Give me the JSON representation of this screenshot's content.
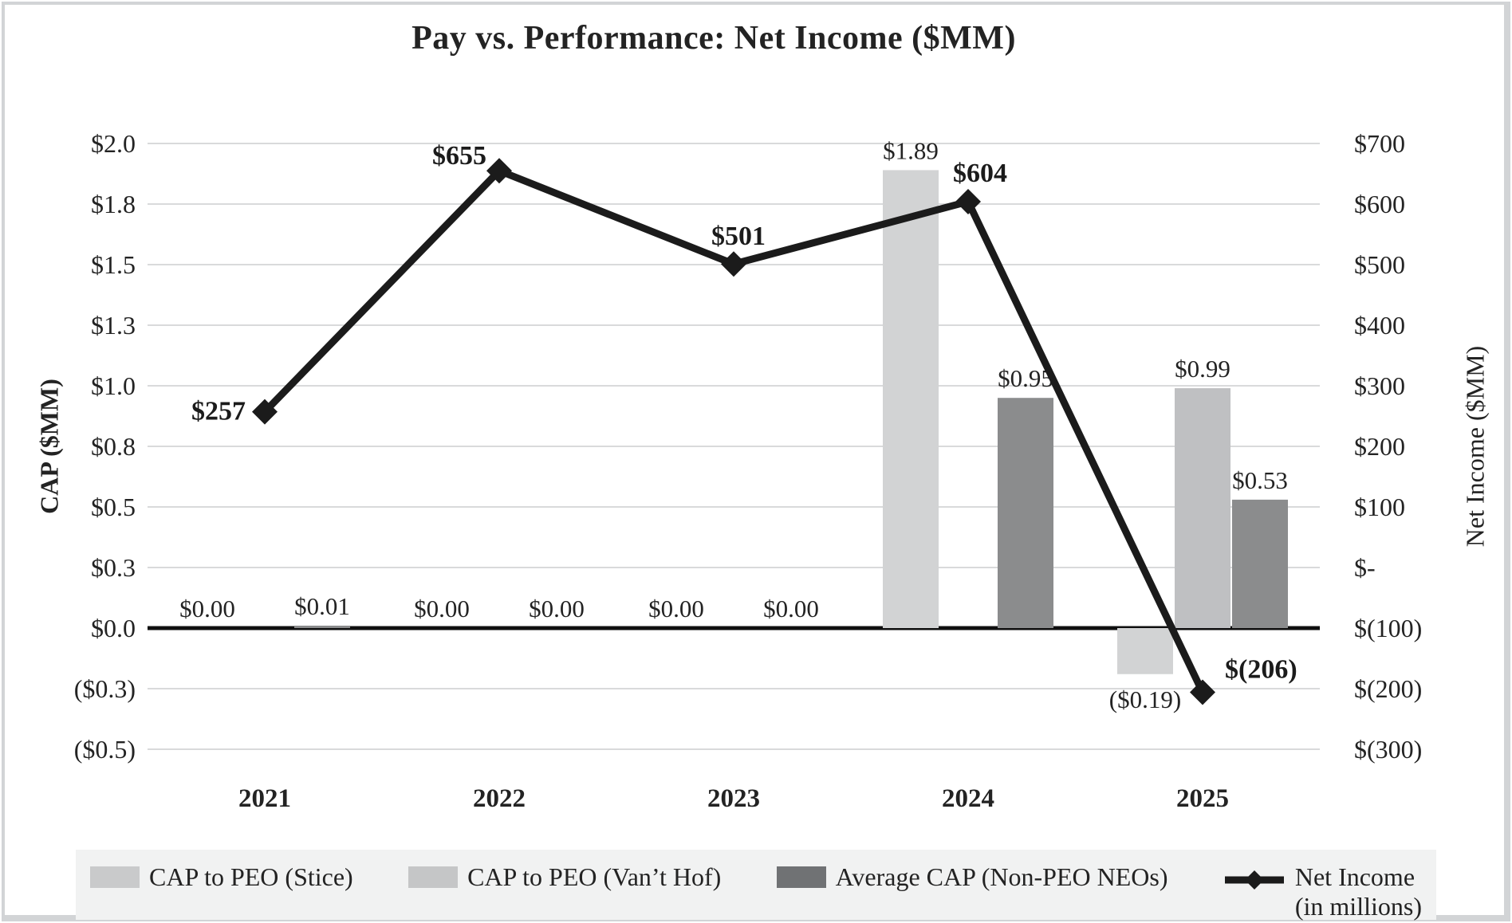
{
  "title": "Pay vs. Performance: Net Income ($MM)",
  "chart_data": {
    "type": "bar+line combo",
    "title": "Pay vs. Performance: Net Income ($MM)",
    "categories": [
      "2021",
      "2022",
      "2023",
      "2024",
      "2025"
    ],
    "left_axis": {
      "title": "CAP ($MM)",
      "ticks": [
        "$2.0",
        "$1.8",
        "$1.5",
        "$1.3",
        "$1.0",
        "$0.8",
        "$0.5",
        "$0.3",
        "$0.0",
        "($0.3)",
        "($0.5)"
      ],
      "max": 2.0,
      "min": -0.5,
      "step": 0.25
    },
    "right_axis": {
      "title": "Net Income ($MM)",
      "ticks": [
        "$700",
        "$600",
        "$500",
        "$400",
        "$300",
        "$200",
        "$100",
        "$-",
        "$(100)",
        "$(200)",
        "$(300)"
      ],
      "max": 700,
      "min": -300,
      "step": 100
    },
    "grid": true,
    "gridline_color": "#d9dadb",
    "zero_line_color": "#0f0f0f",
    "legend_position": "bottom",
    "bar_series": [
      {
        "name": "CAP to PEO (Stice)",
        "color": "#d2d3d4",
        "values": [
          0.0,
          0.0,
          0.0,
          1.89,
          -0.19
        ],
        "labels": [
          "$0.00",
          "$0.00",
          "$0.00",
          "$1.89",
          "($0.19)"
        ]
      },
      {
        "name": "CAP to PEO (Van’t Hof)",
        "color": "#bfc0c2",
        "values": [
          null,
          null,
          null,
          null,
          0.99
        ],
        "labels": [
          null,
          null,
          null,
          null,
          "$0.99"
        ]
      },
      {
        "name": "Average CAP (Non-PEO NEOs)",
        "color": "#8b8c8d",
        "values": [
          0.01,
          0.0,
          0.0,
          0.95,
          0.53
        ],
        "labels": [
          "$0.01",
          "$0.00",
          "$0.00",
          "$0.95",
          "$0.53"
        ]
      }
    ],
    "line_series": {
      "name": "Net Income (in millions)",
      "axis": "right",
      "color": "#1b1b1b",
      "values": [
        257,
        655,
        501,
        604,
        -206
      ],
      "labels": [
        "$257",
        "$655",
        "$501",
        "$604",
        "$(206)"
      ],
      "label_pos": [
        "left",
        "left-high",
        "above",
        "above-right",
        "right"
      ]
    }
  },
  "legend": {
    "background": "#f1f2f2",
    "items": [
      {
        "label": "CAP to PEO (Stice)",
        "swatch": "bar",
        "color": "#c9cacb"
      },
      {
        "label": "CAP to PEO (Van’t Hof)",
        "swatch": "bar",
        "color": "#c5c6c7"
      },
      {
        "label": "Average CAP (Non-PEO NEOs)",
        "swatch": "bar",
        "color": "#707274"
      },
      {
        "label": "Net Income",
        "label2": "(in millions)",
        "swatch": "line-diamond",
        "color": "#1b1b1b"
      }
    ]
  }
}
